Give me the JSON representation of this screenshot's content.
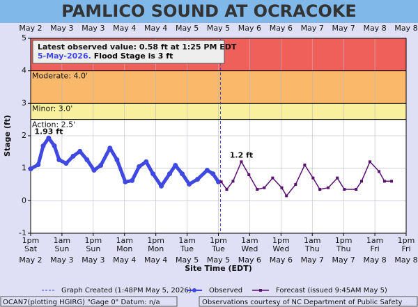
{
  "chart_data": {
    "type": "line",
    "title": "PAMLICO SOUND AT OCRACOKE",
    "xlabel": "Site Time (EDT)",
    "ylabel": "Stage (ft)",
    "xlim": [
      0,
      144
    ],
    "ylim": [
      -1,
      5
    ],
    "yticks": [
      -1,
      0,
      1,
      2,
      3,
      4,
      5
    ],
    "xticks": [
      {
        "value": 0,
        "label": "1pm"
      },
      {
        "value": 12,
        "label": "1am"
      },
      {
        "value": 24,
        "label": "1pm"
      },
      {
        "value": 36,
        "label": "1am"
      },
      {
        "value": 48,
        "label": "1pm"
      },
      {
        "value": 60,
        "label": "1am"
      },
      {
        "value": 72,
        "label": "1pm"
      },
      {
        "value": 84,
        "label": "1am"
      },
      {
        "value": 96,
        "label": "1pm"
      },
      {
        "value": 108,
        "label": "1am"
      },
      {
        "value": 120,
        "label": "1pm"
      },
      {
        "value": 132,
        "label": "1am"
      },
      {
        "value": 144,
        "label": "1pm"
      }
    ],
    "x_days": [
      "Sat",
      "Sun",
      "Sun",
      "Mon",
      "Mon",
      "Tue",
      "Tue",
      "Wed",
      "Wed",
      "Thu",
      "Thu",
      "Fri",
      "Fri"
    ],
    "x_dates": [
      "May 2",
      "May 3",
      "May 3",
      "May 4",
      "May 4",
      "May 5",
      "May 5",
      "May 6",
      "May 6",
      "May 7",
      "May 7",
      "May 8",
      "May 8"
    ],
    "grid": true,
    "thresholds": [
      {
        "name": "Action: 2.5'",
        "value": 2.5,
        "color": "#f8f09c"
      },
      {
        "name": "Minor: 3.0'",
        "value": 3,
        "color": "#f9b86a"
      },
      {
        "name": "Moderate: 4.0'",
        "value": 4,
        "color": "#f0605a"
      }
    ],
    "latest": {
      "line1": "Latest observed value: 0.58 ft at 1:25 PM EDT",
      "line2": "5-May-2026.",
      "flood": "Flood Stage is 3 ft"
    },
    "created": {
      "label": "Graph Created (1:48PM May 5, 2026)",
      "x": 72.8,
      "color": "#3f48e0"
    },
    "series": [
      {
        "name": "Observed",
        "color": "#3f48e0",
        "x": [
          0.0,
          2.9,
          4.8,
          6.9,
          9.1,
          10.9,
          13.6,
          16.3,
          18.9,
          21.6,
          24.3,
          26.9,
          30.4,
          33.1,
          36.3,
          38.9,
          41.6,
          44.3,
          46.9,
          50.1,
          53.3,
          55.5,
          58.1,
          60.8,
          64.0,
          67.7,
          69.9,
          72.0
        ],
        "values": [
          0.98,
          1.11,
          1.69,
          1.93,
          1.69,
          1.26,
          1.15,
          1.37,
          1.52,
          1.26,
          0.94,
          1.09,
          1.62,
          1.26,
          0.58,
          0.62,
          1.05,
          1.2,
          0.83,
          0.45,
          0.83,
          1.09,
          0.83,
          0.51,
          0.66,
          0.94,
          0.83,
          0.58
        ]
      },
      {
        "name": "Forecast (issued 9:45AM May 5)",
        "color": "#5a1070",
        "x": [
          73.1,
          75.2,
          77.6,
          80.8,
          83.7,
          86.9,
          89.6,
          92.8,
          96.3,
          98.1,
          101.6,
          105.1,
          108.3,
          110.9,
          114.1,
          117.6,
          120.3,
          124.8,
          126.9,
          130.1,
          133.6,
          135.7,
          138.4
        ],
        "values": [
          0.58,
          0.35,
          0.6,
          1.2,
          0.8,
          0.35,
          0.4,
          0.7,
          0.4,
          0.15,
          0.5,
          1.1,
          0.7,
          0.35,
          0.4,
          0.7,
          0.35,
          0.35,
          0.6,
          1.2,
          0.9,
          0.6,
          0.6
        ]
      }
    ],
    "annotations": [
      {
        "text": "1.93 ft",
        "series": 0,
        "x": 6.9,
        "value": 1.93
      },
      {
        "text": "1.2 ft",
        "series": 1,
        "x": 80.8,
        "value": 1.2
      }
    ],
    "footer_left": "OCAN7(plotting HGIRG) \"Gage 0\" Datum: n/a",
    "footer_right": "Observations courtesy of NC Department of Public Safety"
  }
}
